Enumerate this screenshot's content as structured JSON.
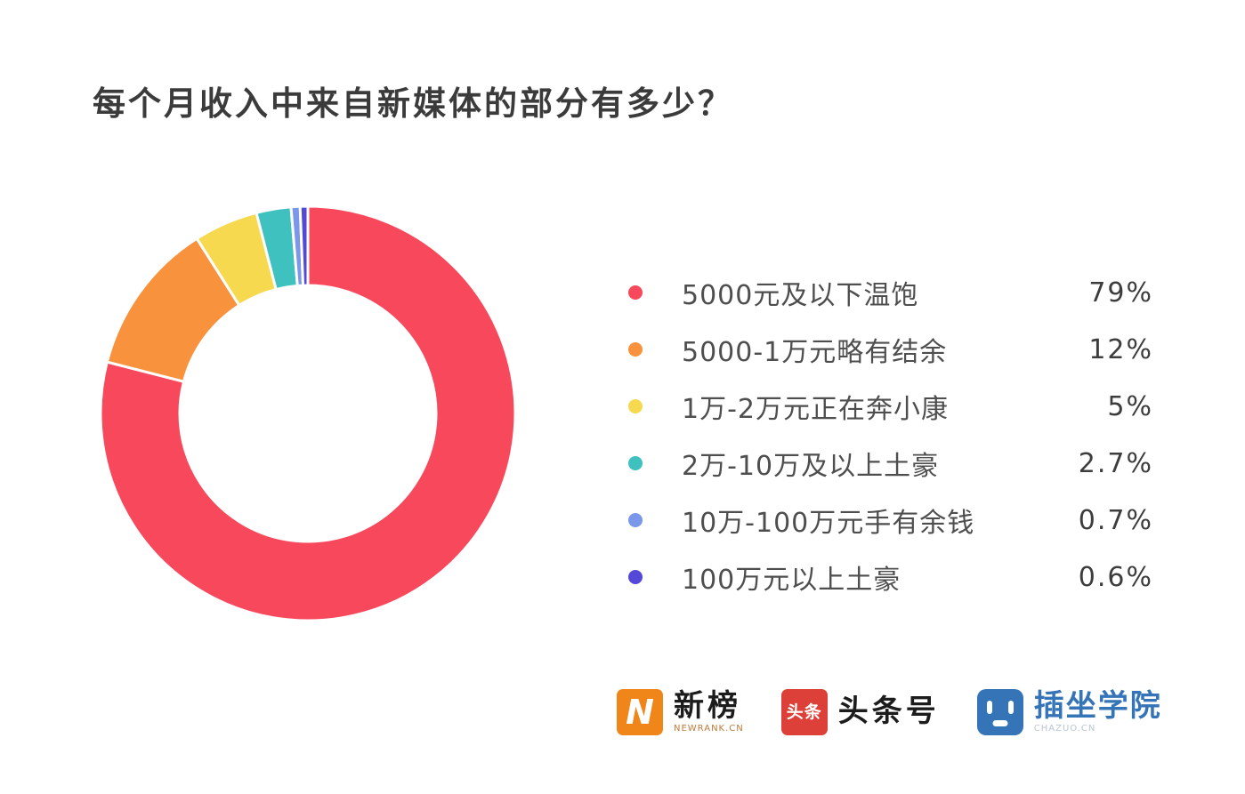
{
  "title": "每个月收入中来自新媒体的部分有多少？",
  "chart_data": {
    "type": "pie",
    "subtype": "donut",
    "title": "每个月收入中来自新媒体的部分有多少？",
    "categories": [
      "5000元及以下温饱",
      "5000-1万元略有结余",
      "1万-2万元正在奔小康",
      "2万-10万及以上土豪",
      "10万-100万元手有余钱",
      "100万元以上土豪"
    ],
    "values": [
      79,
      12,
      5,
      2.7,
      0.7,
      0.6
    ],
    "percent_labels": [
      "79%",
      "12%",
      "5%",
      "2.7%",
      "0.7%",
      "0.6%"
    ],
    "colors": [
      "#f8485c",
      "#f8923d",
      "#f6d94e",
      "#3fc1c0",
      "#7b97ea",
      "#5348d8"
    ],
    "start_angle_deg": 0,
    "direction": "clockwise",
    "donut_hole_ratio": 0.62,
    "segment_gap_color": "#ffffff",
    "legend_position": "right",
    "grid": false
  },
  "footer": {
    "logos": [
      {
        "id": "newrank",
        "badge_text": "N",
        "text": "新榜",
        "subtext": "NEWRANK.CN",
        "color": "#f08519"
      },
      {
        "id": "toutiao",
        "badge_text": "头条",
        "text": "头条号",
        "color": "#dd4038"
      },
      {
        "id": "chazuo",
        "text": "插坐学院",
        "subtext": "CHAZUO.CN",
        "color": "#3575b7"
      }
    ]
  }
}
